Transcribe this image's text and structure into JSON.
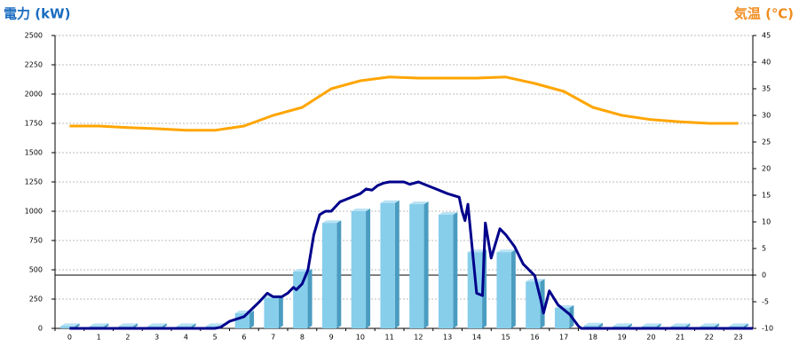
{
  "chart_data": {
    "type": "bar",
    "title_left": "電力 (kW)",
    "title_right": "気温 (℃)",
    "categories": [
      "0",
      "1",
      "2",
      "3",
      "4",
      "5",
      "6",
      "7",
      "8",
      "9",
      "10",
      "11",
      "12",
      "13",
      "14",
      "15",
      "16",
      "17",
      "18",
      "19",
      "20",
      "21",
      "22",
      "23"
    ],
    "series": [
      {
        "type": "bar",
        "color": "#87ceeb",
        "values": [
          20,
          20,
          20,
          20,
          20,
          20,
          130,
          260,
          485,
          900,
          1000,
          1070,
          1060,
          970,
          650,
          650,
          400,
          175,
          25,
          20,
          20,
          20,
          20,
          20
        ]
      },
      {
        "type": "line",
        "color": "#00008b",
        "x": [
          0,
          5,
          5.2,
          5.5,
          6,
          6.5,
          6.8,
          7,
          7.3,
          7.5,
          7.7,
          7.8,
          8,
          8.2,
          8.4,
          8.6,
          8.8,
          9,
          9.3,
          9.6,
          10,
          10.2,
          10.4,
          10.6,
          10.8,
          11,
          11.5,
          11.7,
          12,
          12.3,
          12.6,
          13,
          13.4,
          13.5,
          13.6,
          13.7,
          14,
          14.2,
          14.3,
          14.5,
          14.8,
          15,
          15.3,
          15.6,
          16,
          16.2,
          16.3,
          16.5,
          16.8,
          17.2,
          17.5,
          17.6,
          23.5
        ],
        "values": [
          0,
          0,
          10,
          60,
          100,
          220,
          300,
          270,
          270,
          300,
          350,
          330,
          380,
          500,
          800,
          970,
          1000,
          1000,
          1080,
          1110,
          1150,
          1190,
          1180,
          1220,
          1240,
          1250,
          1250,
          1230,
          1250,
          1220,
          1190,
          1150,
          1120,
          1000,
          920,
          1060,
          300,
          280,
          900,
          600,
          850,
          800,
          700,
          550,
          450,
          250,
          130,
          320,
          200,
          120,
          20,
          0,
          0
        ]
      },
      {
        "type": "line",
        "color": "#ffa500",
        "axis": "y2",
        "values": [
          28,
          28,
          27.7,
          27.5,
          27.2,
          27.2,
          28,
          30,
          31.5,
          35,
          36.5,
          37.2,
          37,
          37,
          37,
          37.2,
          36,
          34.5,
          31.5,
          30,
          29.2,
          28.8,
          28.5,
          28.5
        ]
      }
    ],
    "ylim": [
      0,
      2500
    ],
    "yticks": [
      0,
      250,
      500,
      750,
      1000,
      1250,
      1500,
      1750,
      2000,
      2250,
      2500
    ],
    "y2lim": [
      -10,
      45
    ],
    "y2ticks": [
      -10,
      -5,
      0,
      5,
      10,
      15,
      20,
      25,
      30,
      35,
      40,
      45
    ],
    "grid": true
  }
}
